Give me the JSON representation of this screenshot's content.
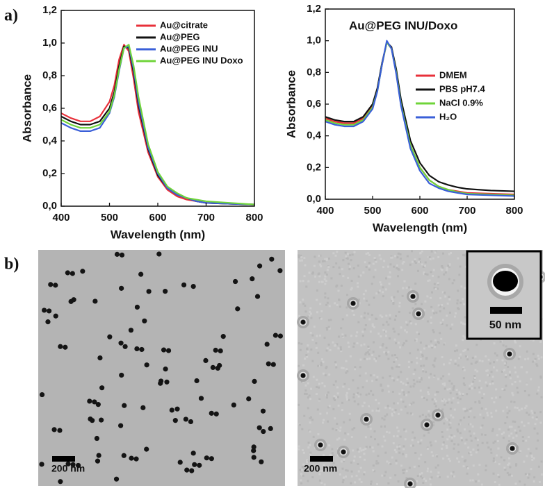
{
  "panel_labels": [
    "a)",
    "b)"
  ],
  "chart_data": [
    {
      "type": "line",
      "x_label": "Wavelength (nm)",
      "y_label": "Absorbance",
      "x": [
        400,
        420,
        440,
        460,
        480,
        500,
        510,
        520,
        530,
        540,
        550,
        560,
        580,
        600,
        620,
        640,
        660,
        680,
        700,
        750,
        800
      ],
      "series": [
        {
          "name": "Au@citrate",
          "color": "#e8303a",
          "values": [
            0.57,
            0.54,
            0.52,
            0.52,
            0.55,
            0.64,
            0.74,
            0.9,
            0.99,
            0.95,
            0.78,
            0.58,
            0.33,
            0.18,
            0.1,
            0.06,
            0.04,
            0.03,
            0.02,
            0.015,
            0.01
          ]
        },
        {
          "name": "Au@PEG",
          "color": "#111111",
          "values": [
            0.55,
            0.52,
            0.5,
            0.5,
            0.52,
            0.6,
            0.7,
            0.86,
            0.98,
            0.97,
            0.82,
            0.62,
            0.35,
            0.19,
            0.11,
            0.07,
            0.05,
            0.03,
            0.02,
            0.015,
            0.01
          ]
        },
        {
          "name": "Au@PEG INU",
          "color": "#3a5fd8",
          "values": [
            0.51,
            0.48,
            0.46,
            0.46,
            0.48,
            0.57,
            0.67,
            0.83,
            0.97,
            0.98,
            0.84,
            0.64,
            0.36,
            0.2,
            0.11,
            0.07,
            0.05,
            0.03,
            0.02,
            0.015,
            0.01
          ]
        },
        {
          "name": "Au@PEG INU Doxo",
          "color": "#6fd43a",
          "values": [
            0.53,
            0.5,
            0.48,
            0.48,
            0.5,
            0.58,
            0.68,
            0.84,
            0.97,
            0.99,
            0.86,
            0.67,
            0.38,
            0.21,
            0.12,
            0.08,
            0.05,
            0.04,
            0.03,
            0.02,
            0.01
          ]
        }
      ],
      "xlim": [
        400,
        800
      ],
      "xticks": [
        400,
        500,
        600,
        700,
        800
      ],
      "ylim": [
        0,
        1.2
      ],
      "yticks": [
        {
          "value": 0,
          "label": "0,0"
        },
        {
          "value": 0.2,
          "label": "0,2"
        },
        {
          "value": 0.4,
          "label": "0,4"
        },
        {
          "value": 0.6,
          "label": "0,6"
        },
        {
          "value": 0.8,
          "label": "0,8"
        },
        {
          "value": 1.0,
          "label": "1,0"
        },
        {
          "value": 1.2,
          "label": "1,2"
        }
      ],
      "legend": "upper right"
    },
    {
      "type": "line",
      "title": "Au@PEG INU/Doxo",
      "x_label": "Wavelength (nm)",
      "y_label": "Absorbance",
      "x": [
        400,
        420,
        440,
        460,
        480,
        500,
        510,
        520,
        530,
        540,
        550,
        560,
        580,
        600,
        620,
        640,
        660,
        680,
        700,
        750,
        800
      ],
      "series": [
        {
          "name": "DMEM",
          "color": "#e8303a",
          "values": [
            0.51,
            0.49,
            0.48,
            0.48,
            0.51,
            0.59,
            0.69,
            0.85,
            0.99,
            0.95,
            0.8,
            0.6,
            0.34,
            0.2,
            0.12,
            0.08,
            0.06,
            0.05,
            0.04,
            0.035,
            0.03
          ]
        },
        {
          "name": "PBS pH7.4",
          "color": "#111111",
          "values": [
            0.52,
            0.5,
            0.49,
            0.49,
            0.52,
            0.6,
            0.7,
            0.86,
            0.99,
            0.96,
            0.82,
            0.63,
            0.37,
            0.23,
            0.15,
            0.11,
            0.09,
            0.075,
            0.065,
            0.055,
            0.05
          ]
        },
        {
          "name": "NaCl 0.9%",
          "color": "#6fd43a",
          "values": [
            0.5,
            0.48,
            0.47,
            0.47,
            0.5,
            0.58,
            0.68,
            0.85,
            0.99,
            0.95,
            0.8,
            0.6,
            0.34,
            0.2,
            0.12,
            0.08,
            0.06,
            0.045,
            0.035,
            0.03,
            0.025
          ]
        },
        {
          "name": "H₂O",
          "color": "#3a5fd8",
          "values": [
            0.49,
            0.47,
            0.46,
            0.46,
            0.49,
            0.57,
            0.68,
            0.85,
            1.0,
            0.95,
            0.79,
            0.59,
            0.32,
            0.18,
            0.1,
            0.07,
            0.05,
            0.04,
            0.03,
            0.025,
            0.02
          ]
        }
      ],
      "xlim": [
        400,
        800
      ],
      "xticks": [
        400,
        500,
        600,
        700,
        800
      ],
      "ylim": [
        0,
        1.2
      ],
      "yticks": [
        {
          "value": 0,
          "label": "0,0"
        },
        {
          "value": 0.2,
          "label": "0,2"
        },
        {
          "value": 0.4,
          "label": "0,4"
        },
        {
          "value": 0.6,
          "label": "0,6"
        },
        {
          "value": 0.8,
          "label": "0,8"
        },
        {
          "value": 1.0,
          "label": "1,0"
        },
        {
          "value": 1.2,
          "label": "1,2"
        }
      ],
      "legend": "center right"
    }
  ],
  "images": [
    {
      "scale_bar": "200 nm"
    },
    {
      "scale_bar": "200 nm",
      "inset_scale_bar": "50 nm"
    }
  ]
}
